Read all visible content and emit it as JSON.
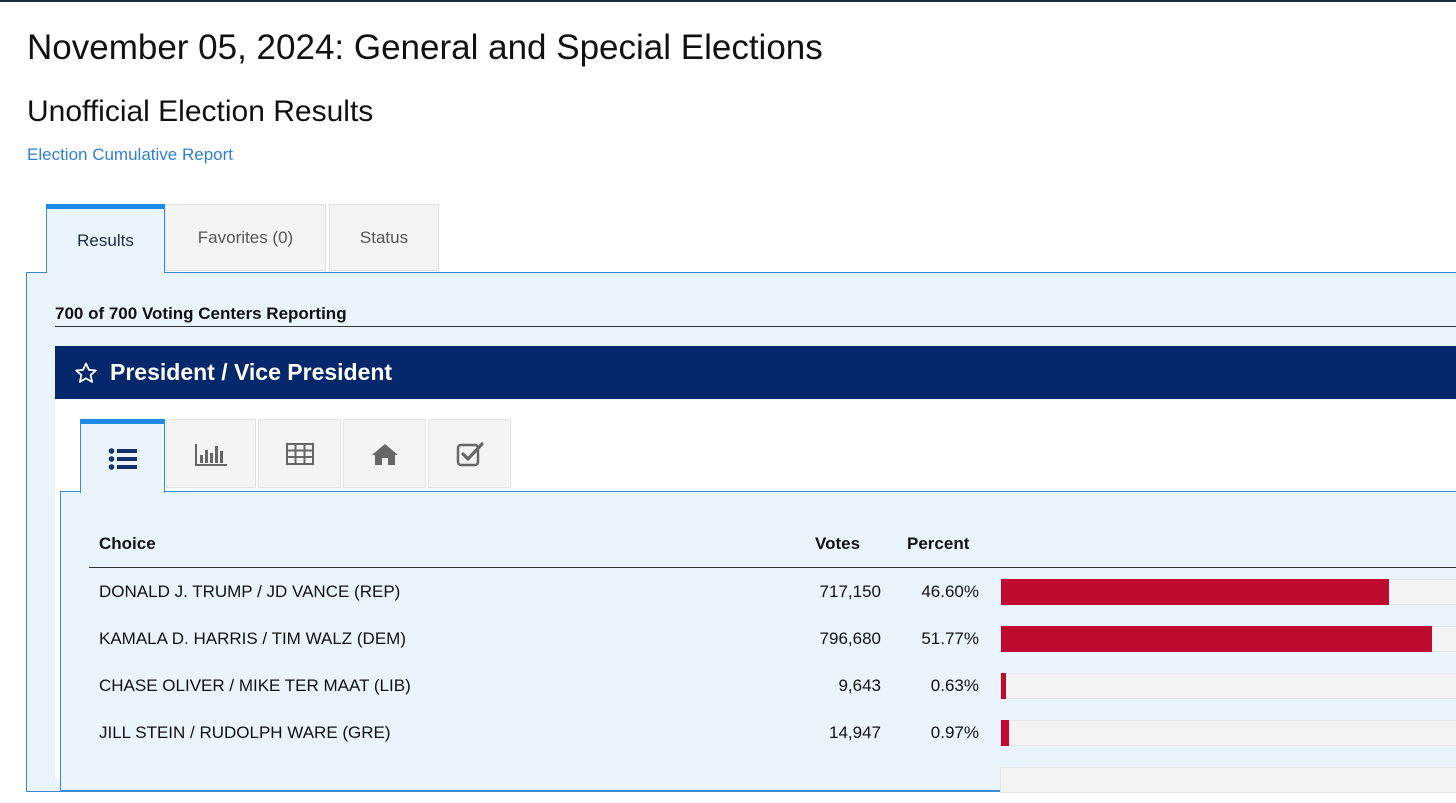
{
  "page": {
    "title": "November 05, 2024: General and Special Elections",
    "subtitle": "Unofficial Election Results",
    "report_link": "Election Cumulative Report"
  },
  "main_tabs": [
    {
      "label": "Results",
      "active": true
    },
    {
      "label": "Favorites (0)",
      "active": false
    },
    {
      "label": "Status",
      "active": false
    }
  ],
  "reporting": "700 of 700 Voting Centers Reporting",
  "race": {
    "name": "President / Vice President",
    "view_tabs": [
      {
        "icon": "list-icon",
        "active": true
      },
      {
        "icon": "bar-chart-icon",
        "active": false
      },
      {
        "icon": "table-icon",
        "active": false
      },
      {
        "icon": "home-icon",
        "active": false
      },
      {
        "icon": "checkbox-icon",
        "active": false
      }
    ],
    "columns": {
      "choice": "Choice",
      "votes": "Votes",
      "percent": "Percent"
    },
    "results": [
      {
        "choice": "DONALD J. TRUMP / JD VANCE (REP)",
        "votes": "717,150",
        "percent": "46.60%",
        "share": 46.6
      },
      {
        "choice": "KAMALA D. HARRIS / TIM WALZ (DEM)",
        "votes": "796,680",
        "percent": "51.77%",
        "share": 51.77
      },
      {
        "choice": "CHASE OLIVER / MIKE TER MAAT (LIB)",
        "votes": "9,643",
        "percent": "0.63%",
        "share": 0.63
      },
      {
        "choice": "JILL STEIN / RUDOLPH WARE (GRE)",
        "votes": "14,947",
        "percent": "0.97%",
        "share": 0.97
      }
    ]
  },
  "colors": {
    "header_bg": "#04286b",
    "bar": "#be0a2f",
    "accent": "#1c8ae8",
    "link": "#2f7fd6",
    "panel_bg": "#eaf4fd"
  }
}
